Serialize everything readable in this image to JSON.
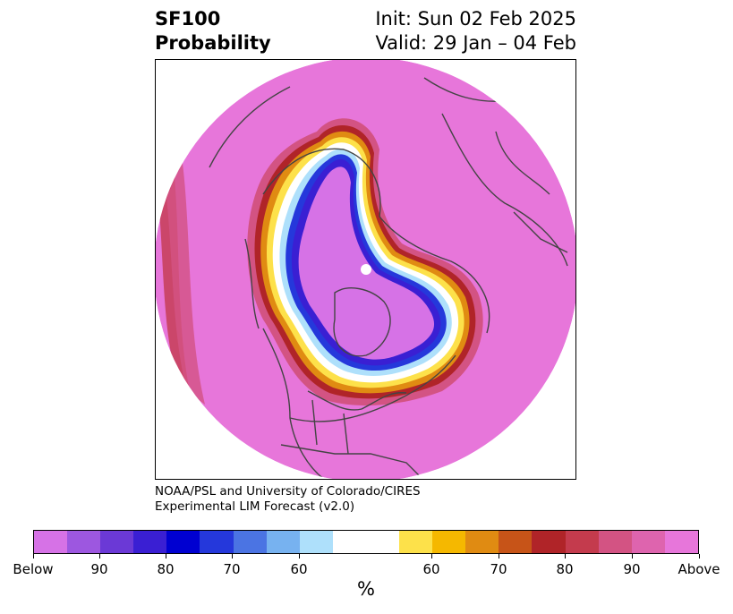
{
  "title": {
    "line1": "SF100",
    "line2": "Probability",
    "init": "Init: Sun 02 Feb 2025",
    "valid": "Valid: 29 Jan – 04 Feb"
  },
  "credit": {
    "line1": "NOAA/PSL and University of Colorado/CIRES",
    "line2": "Experimental LIM Forecast (v2.0)"
  },
  "colorbar": {
    "unit": "%",
    "colors": [
      "#d672e6",
      "#9d57e0",
      "#6b39d6",
      "#3a1fd3",
      "#0000d1",
      "#2538db",
      "#4b74e3",
      "#77b2f0",
      "#aee0fb",
      "#ffffff",
      "#ffffff",
      "#fde14a",
      "#f5b800",
      "#e08b12",
      "#c75418",
      "#b02428",
      "#c43b4d",
      "#d35383",
      "#de64ae",
      "#e776da"
    ],
    "ticks": [
      "Below",
      "90",
      "80",
      "70",
      "60",
      "60",
      "70",
      "80",
      "90",
      "Above"
    ]
  },
  "map": {
    "colors": {
      "above": "#e776da",
      "below": "#d672e6",
      "coast": "#444444"
    }
  }
}
